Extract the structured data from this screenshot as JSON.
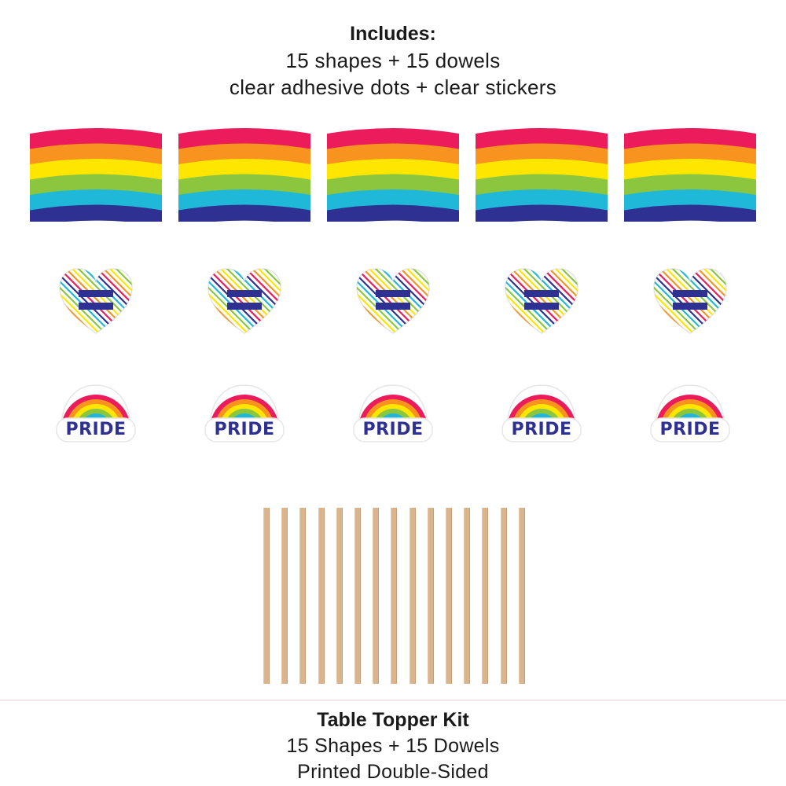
{
  "header": {
    "title": "Includes:",
    "line1": "15 shapes + 15 dowels",
    "line2": "clear adhesive dots + clear stickers"
  },
  "shapes": {
    "flag_icon": "rainbow-flag-icon",
    "heart_icon": "equality-heart-icon",
    "rainbow_icon": "pride-rainbow-icon",
    "pride_label": "PRIDE",
    "per_row": 5,
    "flag_colors": [
      "#ec1b5b",
      "#f7931e",
      "#ffe600",
      "#8cc63f",
      "#1fb8d8",
      "#2e3192"
    ],
    "heart_stripe_colors": [
      "#ec1b5b",
      "#f7931e",
      "#ffe600",
      "#8cc63f",
      "#1fb8d8",
      "#2e3192"
    ],
    "equal_sign_color": "#2e3192",
    "rainbow_colors": [
      "#ec1b5b",
      "#f7931e",
      "#ffe600",
      "#8cc63f",
      "#1fb8d8",
      "#2e3192"
    ],
    "pride_text_color": "#2e3192"
  },
  "dowels": {
    "icon": "wooden-dowel-icon",
    "count": 15,
    "color": "#d9b48c",
    "edge_color": "#c79e73"
  },
  "footer": {
    "title": "Table Topper Kit",
    "line1": "15 Shapes + 15 Dowels",
    "line2": "Printed Double-Sided"
  }
}
